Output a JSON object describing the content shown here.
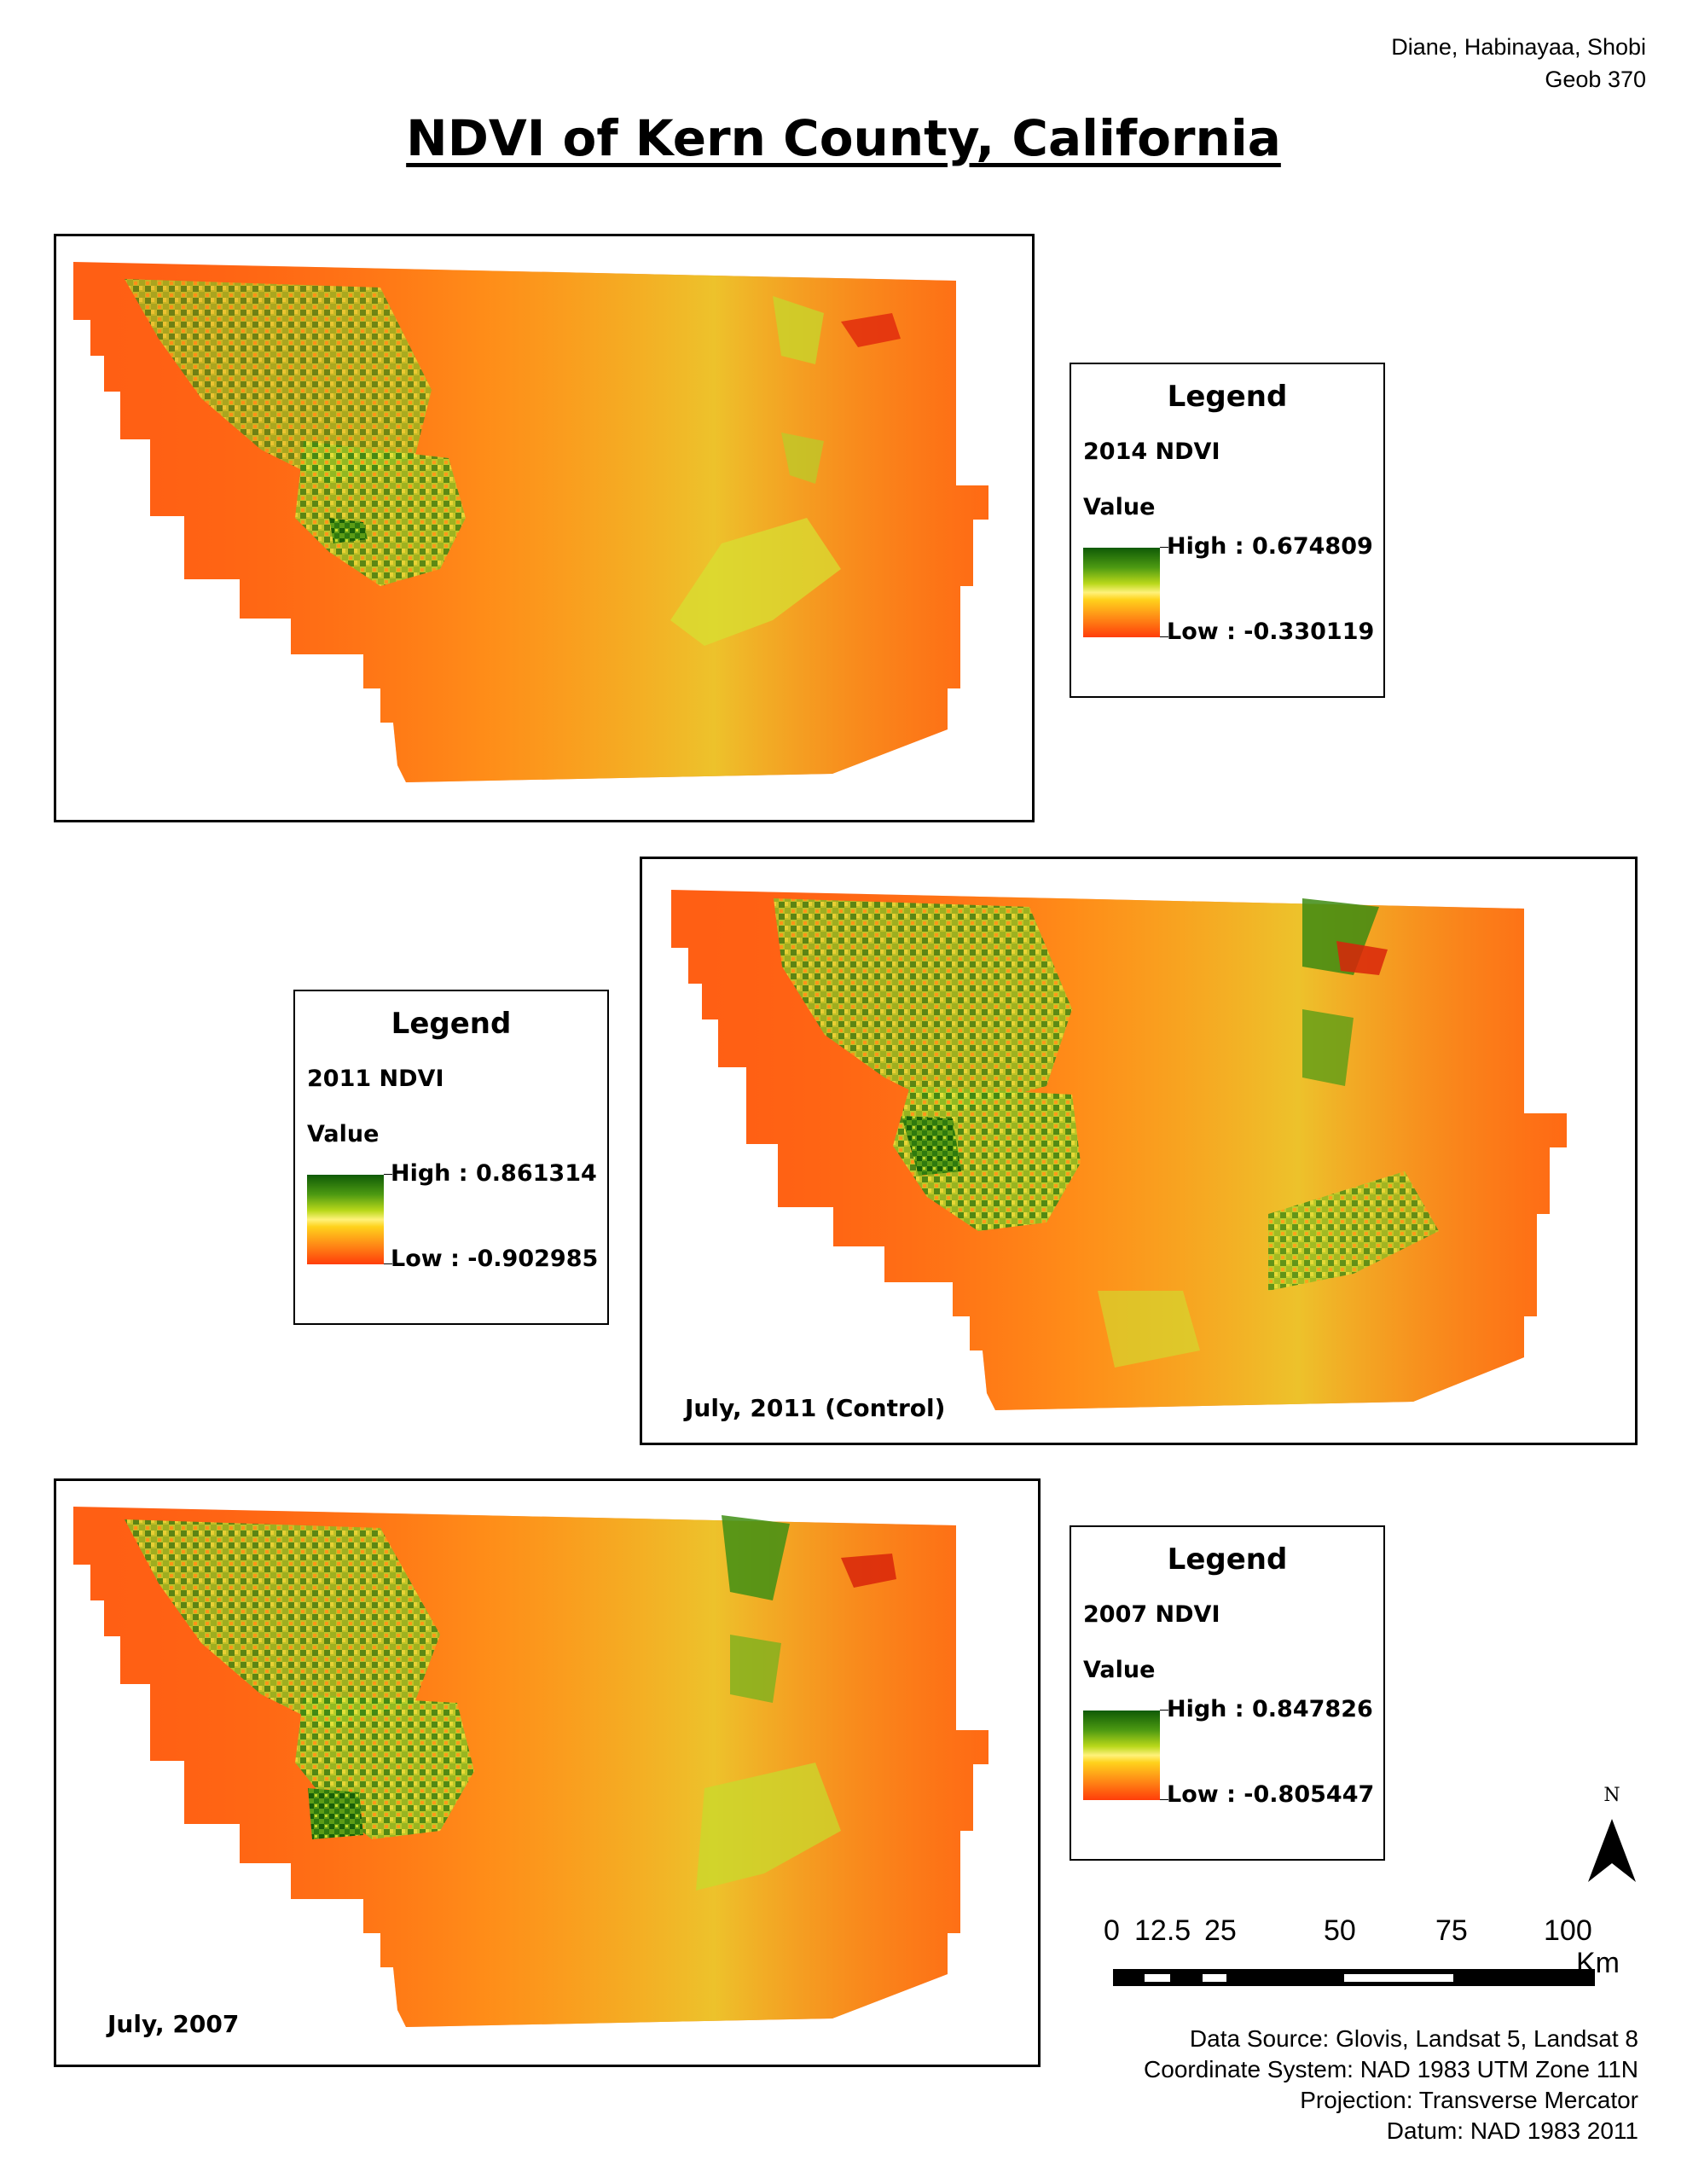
{
  "authors": [
    "Diane, Habinayaa, Shobi",
    "Geob 370"
  ],
  "title": "NDVI of Kern County, California",
  "maps": [
    {
      "caption": "",
      "legend": {
        "title": "Legend",
        "layer": "2014 NDVI",
        "value_label": "Value",
        "high": "High : 0.674809",
        "low": "Low : -0.330119"
      }
    },
    {
      "caption": "July, 2011 (Control)",
      "legend": {
        "title": "Legend",
        "layer": "2011 NDVI",
        "value_label": "Value",
        "high": "High : 0.861314",
        "low": "Low : -0.902985"
      }
    },
    {
      "caption": "July, 2007",
      "legend": {
        "title": "Legend",
        "layer": "2007 NDVI",
        "value_label": "Value",
        "high": "High : 0.847826",
        "low": "Low : -0.805447"
      }
    }
  ],
  "legend_ramp_colors": [
    "#0f5a06",
    "#4d9a12",
    "#b9d81a",
    "#fff27a",
    "#ffd21c",
    "#ff8b16",
    "#ff3d0a"
  ],
  "north_arrow": {
    "label": "N",
    "icon": "north-arrow-icon"
  },
  "scale_bar": {
    "labels": [
      "0",
      "12.5",
      "25",
      "50",
      "75",
      "100"
    ],
    "unit": "Km"
  },
  "credits": [
    "Data Source: Glovis, Landsat 5, Landsat 8",
    "Coordinate System: NAD 1983 UTM Zone 11N",
    "Projection: Transverse Mercator",
    "Datum: NAD 1983 2011"
  ]
}
